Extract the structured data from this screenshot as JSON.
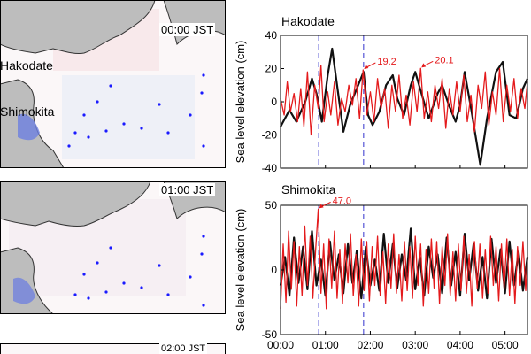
{
  "maps": [
    {
      "time": "00:00 JST",
      "labels": {
        "a": "Hakodate",
        "b": "Shimokita"
      }
    },
    {
      "time": "01:00 JST"
    },
    {
      "time": "02:00 JST"
    }
  ],
  "colors": {
    "observed": "#111111",
    "simulated": "#e41a1c",
    "marker": "#1a1aff",
    "land": "#bdbdbd"
  },
  "chart_data": [
    {
      "type": "line",
      "title": "Hakodate",
      "ylabel": "Sea level elevation (cm)",
      "ylim": [
        -40,
        40
      ],
      "yticks": [
        -40,
        -20,
        0,
        20,
        40
      ],
      "xlim": [
        0,
        5.5
      ],
      "xticks": [
        "00:00",
        "01:00",
        "02:00",
        "03:00",
        "04:00",
        "05:00"
      ],
      "time_markers": [
        0.85,
        1.85
      ],
      "series": [
        {
          "key": "observed",
          "color": "#111111",
          "points": [
            [
              0,
              -15
            ],
            [
              0.2,
              -5
            ],
            [
              0.35,
              -12
            ],
            [
              0.55,
              0
            ],
            [
              0.7,
              14
            ],
            [
              0.8,
              5
            ],
            [
              0.92,
              -12
            ],
            [
              1.05,
              16
            ],
            [
              1.15,
              32
            ],
            [
              1.3,
              2
            ],
            [
              1.4,
              -18
            ],
            [
              1.55,
              -2
            ],
            [
              1.7,
              8
            ],
            [
              1.85,
              18
            ],
            [
              1.95,
              -8
            ],
            [
              2.05,
              -14
            ],
            [
              2.2,
              -6
            ],
            [
              2.35,
              10
            ],
            [
              2.5,
              16
            ],
            [
              2.6,
              2
            ],
            [
              2.75,
              -8
            ],
            [
              2.9,
              10
            ],
            [
              3.0,
              18
            ],
            [
              3.15,
              4
            ],
            [
              3.3,
              -10
            ],
            [
              3.5,
              5
            ],
            [
              3.6,
              10
            ],
            [
              3.75,
              -2
            ],
            [
              3.9,
              -12
            ],
            [
              4.0,
              -2
            ],
            [
              4.1,
              18
            ],
            [
              4.25,
              -5
            ],
            [
              4.45,
              -38
            ],
            [
              4.6,
              -10
            ],
            [
              4.8,
              18
            ],
            [
              4.95,
              24
            ],
            [
              5.1,
              -8
            ],
            [
              5.25,
              -10
            ],
            [
              5.4,
              8
            ],
            [
              5.5,
              14
            ]
          ]
        },
        {
          "key": "simulated",
          "color": "#e41a1c",
          "points": [
            [
              0,
              2
            ],
            [
              0.08,
              -8
            ],
            [
              0.15,
              12
            ],
            [
              0.22,
              -6
            ],
            [
              0.3,
              5
            ],
            [
              0.38,
              -12
            ],
            [
              0.45,
              8
            ],
            [
              0.52,
              -15
            ],
            [
              0.6,
              18
            ],
            [
              0.68,
              -20
            ],
            [
              0.76,
              10
            ],
            [
              0.84,
              -4
            ],
            [
              0.9,
              22
            ],
            [
              0.97,
              -12
            ],
            [
              1.05,
              6
            ],
            [
              1.12,
              -8
            ],
            [
              1.2,
              12
            ],
            [
              1.28,
              -14
            ],
            [
              1.36,
              2
            ],
            [
              1.44,
              -6
            ],
            [
              1.52,
              10
            ],
            [
              1.6,
              -2
            ],
            [
              1.68,
              14
            ],
            [
              1.76,
              -10
            ],
            [
              1.84,
              19.2
            ],
            [
              1.92,
              -8
            ],
            [
              2.0,
              6
            ],
            [
              2.08,
              -12
            ],
            [
              2.16,
              14
            ],
            [
              2.24,
              -4
            ],
            [
              2.32,
              8
            ],
            [
              2.4,
              -16
            ],
            [
              2.48,
              10
            ],
            [
              2.56,
              -6
            ],
            [
              2.64,
              16
            ],
            [
              2.72,
              -10
            ],
            [
              2.8,
              4
            ],
            [
              2.88,
              -14
            ],
            [
              2.96,
              12
            ],
            [
              3.04,
              -6
            ],
            [
              3.12,
              20.1
            ],
            [
              3.2,
              -10
            ],
            [
              3.28,
              6
            ],
            [
              3.36,
              -12
            ],
            [
              3.44,
              10
            ],
            [
              3.52,
              -4
            ],
            [
              3.6,
              14
            ],
            [
              3.68,
              -16
            ],
            [
              3.76,
              8
            ],
            [
              3.84,
              -8
            ],
            [
              3.92,
              12
            ],
            [
              4.0,
              -6
            ],
            [
              4.08,
              16
            ],
            [
              4.16,
              -12
            ],
            [
              4.24,
              4
            ],
            [
              4.32,
              -18
            ],
            [
              4.4,
              10
            ],
            [
              4.48,
              -4
            ],
            [
              4.56,
              18
            ],
            [
              4.64,
              -14
            ],
            [
              4.72,
              6
            ],
            [
              4.8,
              -8
            ],
            [
              4.88,
              20
            ],
            [
              4.96,
              -12
            ],
            [
              5.04,
              10
            ],
            [
              5.12,
              -6
            ],
            [
              5.2,
              14
            ],
            [
              5.28,
              -10
            ],
            [
              5.36,
              8
            ],
            [
              5.44,
              -4
            ],
            [
              5.5,
              12
            ]
          ]
        }
      ],
      "annotations": [
        {
          "text": "19.2",
          "x": 1.84,
          "y": 19.2
        },
        {
          "text": "20.1",
          "x": 3.12,
          "y": 20.1
        }
      ]
    },
    {
      "type": "line",
      "title": "Shimokita",
      "ylabel": "Sea level elevation (cm)",
      "ylim": [
        -50,
        50
      ],
      "yticks": [
        -50,
        0,
        50
      ],
      "xlim": [
        0,
        5.5
      ],
      "xticks": [
        "00:00",
        "01:00",
        "02:00",
        "03:00",
        "04:00",
        "05:00"
      ],
      "time_markers": [
        0.85,
        1.85
      ],
      "series": [
        {
          "key": "observed",
          "color": "#111111",
          "points": [
            [
              0,
              -12
            ],
            [
              0.1,
              10
            ],
            [
              0.2,
              -20
            ],
            [
              0.3,
              25
            ],
            [
              0.4,
              -10
            ],
            [
              0.5,
              18
            ],
            [
              0.6,
              -15
            ],
            [
              0.7,
              30
            ],
            [
              0.8,
              -12
            ],
            [
              0.9,
              8
            ],
            [
              1.0,
              -20
            ],
            [
              1.1,
              22
            ],
            [
              1.2,
              -8
            ],
            [
              1.3,
              12
            ],
            [
              1.4,
              -18
            ],
            [
              1.5,
              20
            ],
            [
              1.6,
              -10
            ],
            [
              1.7,
              15
            ],
            [
              1.8,
              -22
            ],
            [
              1.9,
              18
            ],
            [
              2.0,
              -12
            ],
            [
              2.1,
              8
            ],
            [
              2.2,
              -16
            ],
            [
              2.3,
              28
            ],
            [
              2.4,
              -10
            ],
            [
              2.5,
              20
            ],
            [
              2.6,
              -14
            ],
            [
              2.7,
              12
            ],
            [
              2.8,
              -8
            ],
            [
              2.9,
              32
            ],
            [
              3.0,
              -15
            ],
            [
              3.1,
              10
            ],
            [
              3.2,
              -20
            ],
            [
              3.3,
              18
            ],
            [
              3.4,
              -6
            ],
            [
              3.5,
              12
            ],
            [
              3.6,
              -18
            ],
            [
              3.7,
              25
            ],
            [
              3.8,
              -12
            ],
            [
              3.9,
              14
            ],
            [
              4.0,
              -20
            ],
            [
              4.1,
              28
            ],
            [
              4.2,
              -8
            ],
            [
              4.3,
              20
            ],
            [
              4.4,
              -16
            ],
            [
              4.5,
              10
            ],
            [
              4.6,
              -22
            ],
            [
              4.7,
              24
            ],
            [
              4.8,
              -10
            ],
            [
              4.9,
              16
            ],
            [
              5.0,
              -18
            ],
            [
              5.1,
              22
            ],
            [
              5.2,
              -12
            ],
            [
              5.3,
              14
            ],
            [
              5.4,
              -16
            ],
            [
              5.5,
              10
            ]
          ]
        },
        {
          "key": "simulated",
          "color": "#e41a1c",
          "points": [
            [
              0,
              -30
            ],
            [
              0.06,
              20
            ],
            [
              0.12,
              -25
            ],
            [
              0.18,
              30
            ],
            [
              0.24,
              -15
            ],
            [
              0.3,
              22
            ],
            [
              0.36,
              -28
            ],
            [
              0.42,
              18
            ],
            [
              0.48,
              -20
            ],
            [
              0.54,
              34
            ],
            [
              0.6,
              -12
            ],
            [
              0.66,
              26
            ],
            [
              0.72,
              -22
            ],
            [
              0.78,
              15
            ],
            [
              0.84,
              47.0
            ],
            [
              0.9,
              -18
            ],
            [
              0.96,
              20
            ],
            [
              1.02,
              -30
            ],
            [
              1.08,
              24
            ],
            [
              1.14,
              -14
            ],
            [
              1.2,
              30
            ],
            [
              1.26,
              -22
            ],
            [
              1.32,
              16
            ],
            [
              1.38,
              -26
            ],
            [
              1.44,
              20
            ],
            [
              1.5,
              -10
            ],
            [
              1.56,
              28
            ],
            [
              1.62,
              -20
            ],
            [
              1.68,
              12
            ],
            [
              1.74,
              -28
            ],
            [
              1.8,
              24
            ],
            [
              1.86,
              -16
            ],
            [
              1.92,
              22
            ],
            [
              1.98,
              -24
            ],
            [
              2.04,
              18
            ],
            [
              2.1,
              -12
            ],
            [
              2.16,
              26
            ],
            [
              2.22,
              -20
            ],
            [
              2.28,
              14
            ],
            [
              2.34,
              -26
            ],
            [
              2.4,
              20
            ],
            [
              2.46,
              -14
            ],
            [
              2.52,
              28
            ],
            [
              2.58,
              -18
            ],
            [
              2.64,
              12
            ],
            [
              2.7,
              -24
            ],
            [
              2.76,
              22
            ],
            [
              2.82,
              -16
            ],
            [
              2.88,
              18
            ],
            [
              2.94,
              -22
            ],
            [
              3.0,
              26
            ],
            [
              3.06,
              -12
            ],
            [
              3.12,
              20
            ],
            [
              3.18,
              -28
            ],
            [
              3.24,
              16
            ],
            [
              3.3,
              -18
            ],
            [
              3.36,
              24
            ],
            [
              3.42,
              -14
            ],
            [
              3.48,
              22
            ],
            [
              3.54,
              -26
            ],
            [
              3.6,
              18
            ],
            [
              3.66,
              -12
            ],
            [
              3.72,
              28
            ],
            [
              3.78,
              -20
            ],
            [
              3.84,
              14
            ],
            [
              3.9,
              -24
            ],
            [
              3.96,
              20
            ],
            [
              4.02,
              -16
            ],
            [
              4.08,
              26
            ],
            [
              4.14,
              -18
            ],
            [
              4.2,
              12
            ],
            [
              4.26,
              -28
            ],
            [
              4.32,
              22
            ],
            [
              4.38,
              -14
            ],
            [
              4.44,
              20
            ],
            [
              4.5,
              -22
            ],
            [
              4.56,
              16
            ],
            [
              4.62,
              -18
            ],
            [
              4.68,
              26
            ],
            [
              4.74,
              -12
            ],
            [
              4.8,
              18
            ],
            [
              4.86,
              -24
            ],
            [
              4.92,
              20
            ],
            [
              4.98,
              -14
            ],
            [
              5.04,
              24
            ],
            [
              5.1,
              -20
            ],
            [
              5.16,
              16
            ],
            [
              5.22,
              -26
            ],
            [
              5.28,
              18
            ],
            [
              5.34,
              -12
            ],
            [
              5.4,
              22
            ],
            [
              5.46,
              -16
            ],
            [
              5.5,
              10
            ]
          ]
        }
      ],
      "annotations": [
        {
          "text": "47.0",
          "x": 0.84,
          "y": 47.0
        }
      ]
    }
  ]
}
